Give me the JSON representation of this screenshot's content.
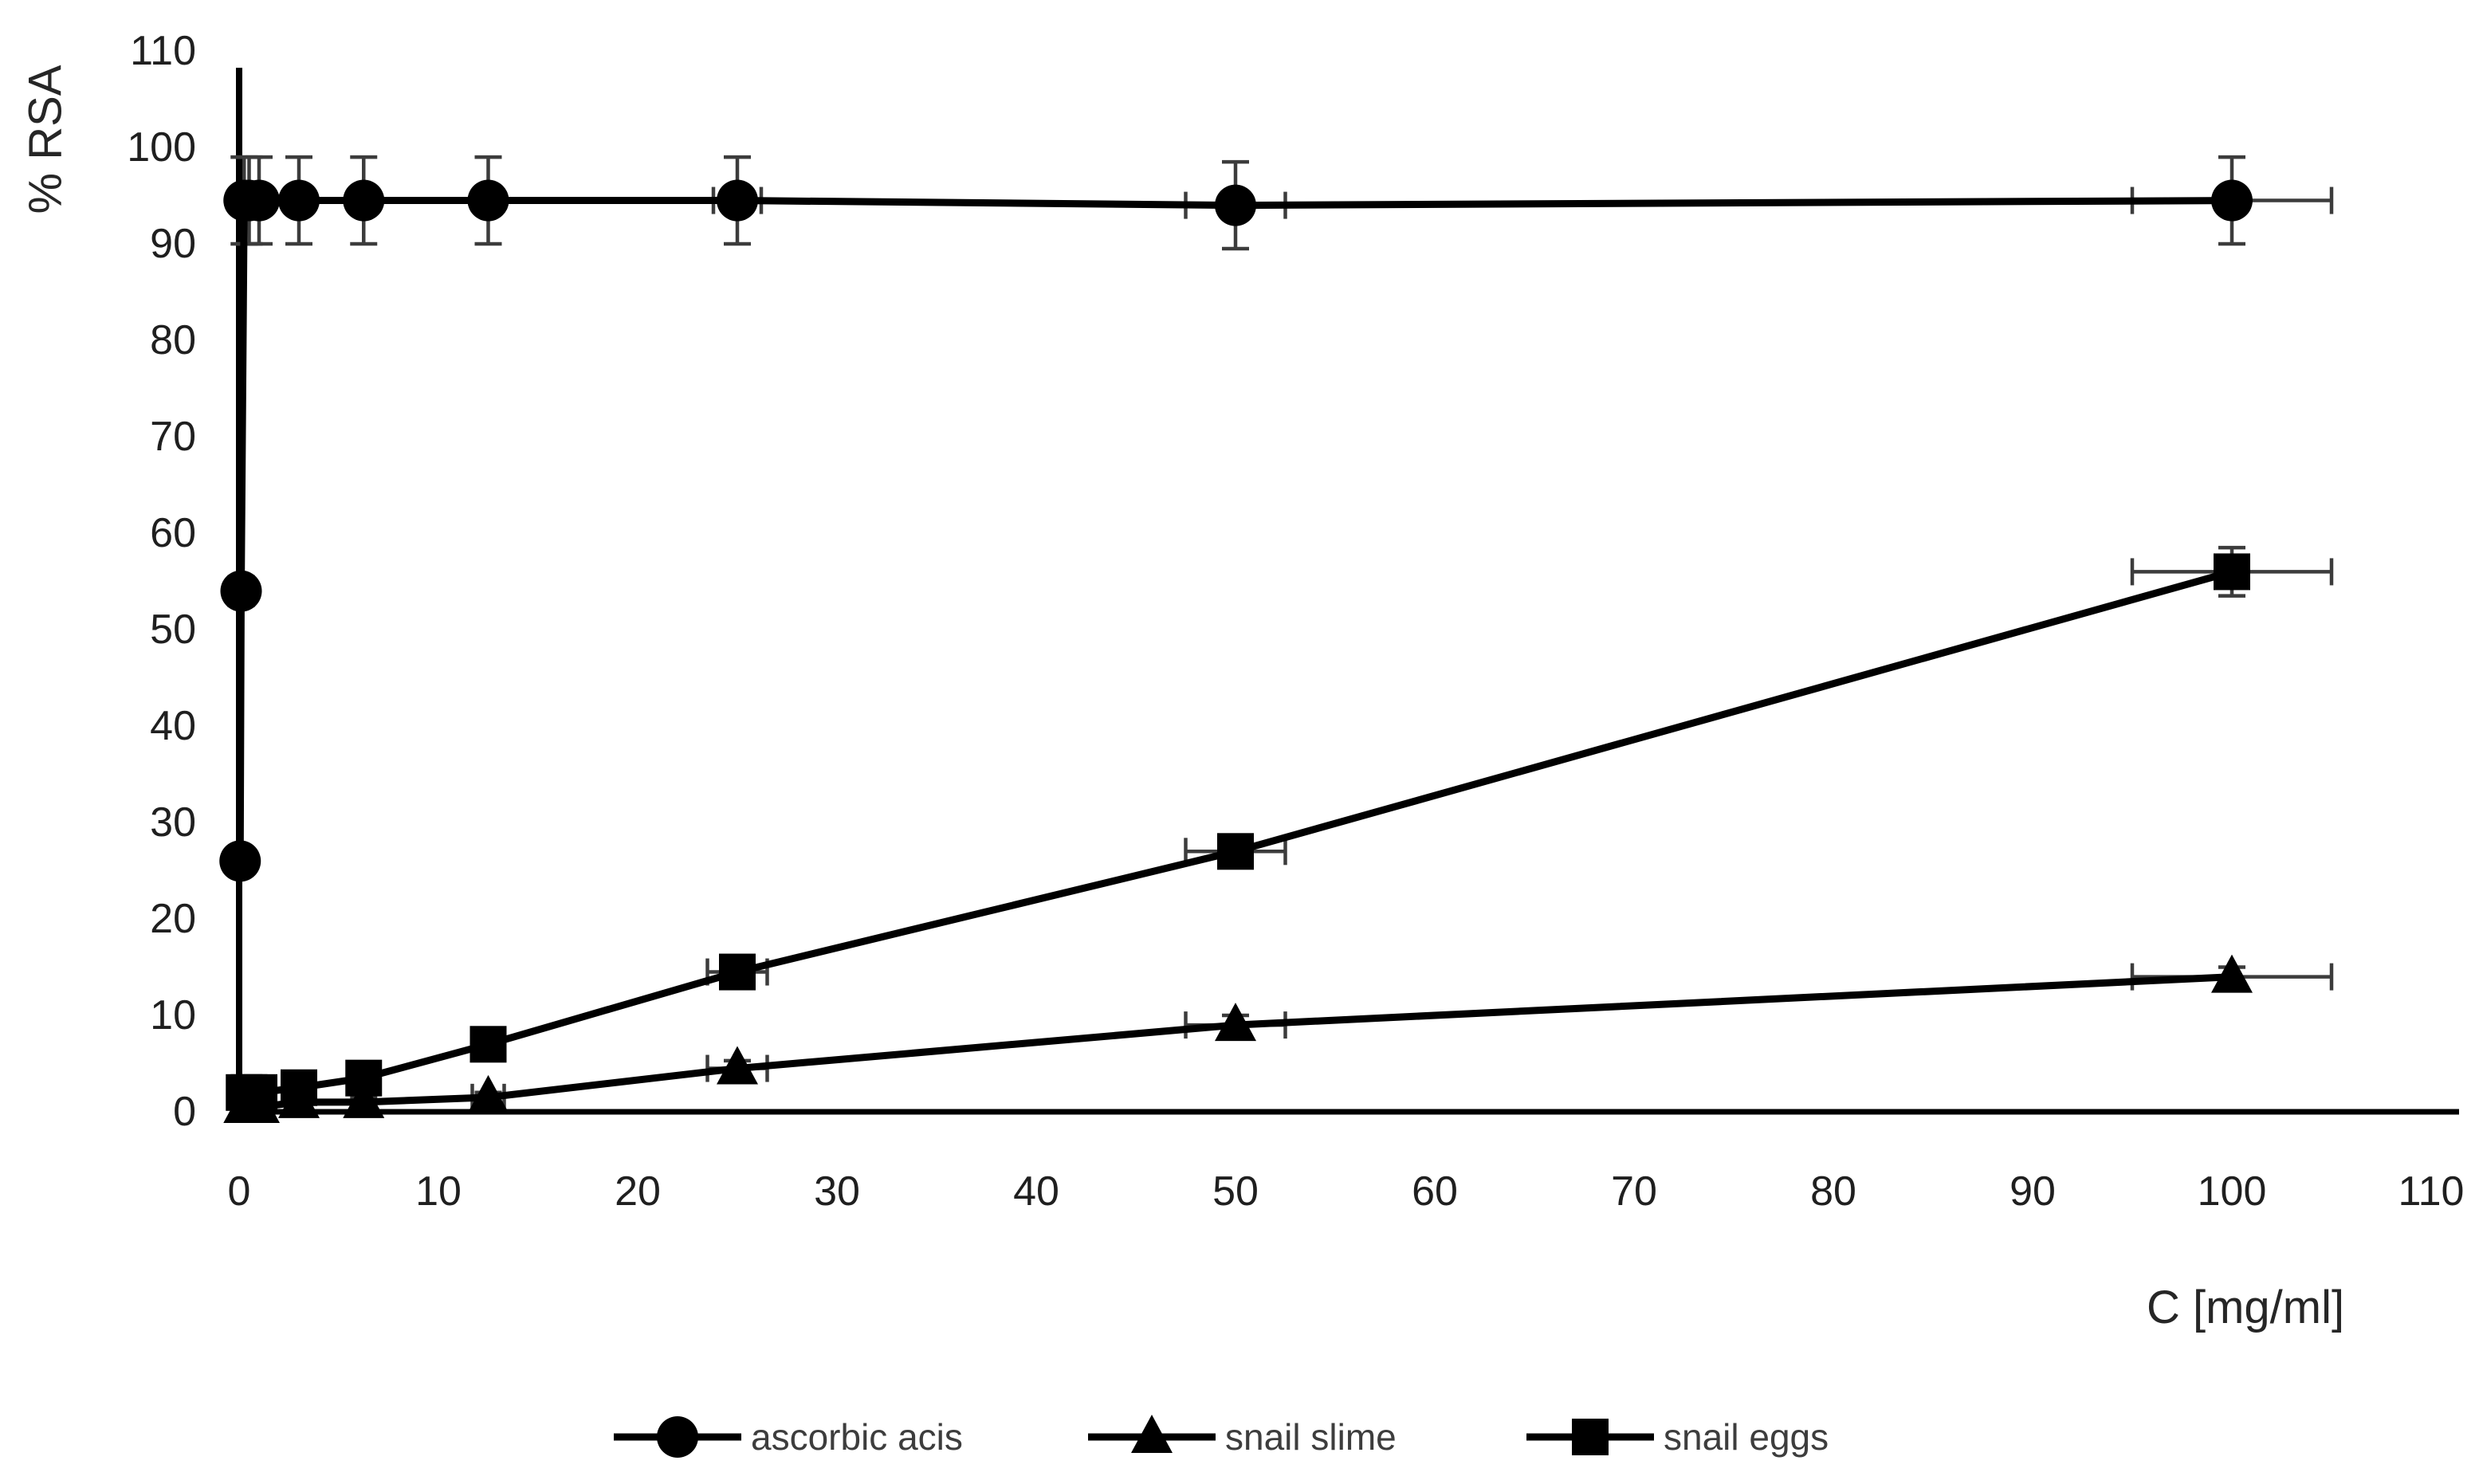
{
  "figure": {
    "background": "#ffffff",
    "colors": {
      "series": "#000000",
      "error_bars": "#3c3c3c",
      "tick_labels": "#1f1f1f",
      "axis_titles": "#262626",
      "legend_text": "#3d3d3d",
      "axis_lines": "#000000"
    }
  },
  "chart_data": {
    "type": "line",
    "title": "",
    "xlabel": "C [mg/ml]",
    "ylabel": "% RSA",
    "xlim": [
      0,
      110
    ],
    "ylim": [
      0,
      110
    ],
    "grid": false,
    "legend_position": "bottom-center",
    "x_tick_labels": [
      "0",
      "10",
      "20",
      "30",
      "40",
      "50",
      "60",
      "70",
      "80",
      "90",
      "100",
      "110"
    ],
    "y_tick_labels": [
      "0",
      "10",
      "20",
      "30",
      "40",
      "50",
      "60",
      "70",
      "80",
      "90",
      "100",
      "110"
    ],
    "series": [
      {
        "name": "ascorbic acis",
        "marker": "circle",
        "x": [
          0.05,
          0.1,
          0.25,
          0.5,
          1,
          3,
          6.25,
          12.5,
          25,
          50,
          100
        ],
        "y": [
          26,
          54,
          94.5,
          94.5,
          94.5,
          94.5,
          94.5,
          94.5,
          94.5,
          94,
          94.5
        ],
        "yerr": [
          0,
          1.5,
          4.5,
          4.5,
          4.5,
          4.5,
          4.5,
          4.5,
          4.5,
          4.5,
          4.5
        ],
        "xerr": [
          0,
          0,
          0,
          0,
          0,
          0,
          0,
          0,
          1.2,
          2.5,
          5
        ]
      },
      {
        "name": "snail slime",
        "marker": "triangle",
        "x": [
          0.25,
          0.5,
          1,
          3,
          6.25,
          12.5,
          25,
          50,
          100
        ],
        "y": [
          0.5,
          0.5,
          0.5,
          1,
          1,
          1.5,
          4.5,
          9,
          14
        ],
        "yerr": [
          0.5,
          0.5,
          0.5,
          0.5,
          0.5,
          0.5,
          0.8,
          1,
          1
        ],
        "xerr": [
          0,
          0,
          0,
          0,
          0,
          0.8,
          1.5,
          2.5,
          5
        ]
      },
      {
        "name": "snail eggs",
        "marker": "square",
        "x": [
          0.25,
          0.5,
          1,
          3,
          6.25,
          12.5,
          25,
          50,
          100
        ],
        "y": [
          2,
          2,
          2,
          2.5,
          3.5,
          7,
          14.5,
          27,
          56
        ],
        "yerr": [
          0.8,
          0.8,
          0.8,
          0.8,
          0.8,
          0.8,
          1,
          1,
          2.5
        ],
        "xerr": [
          0,
          0,
          0,
          0,
          0,
          0.8,
          1.5,
          2.5,
          5
        ]
      }
    ]
  }
}
